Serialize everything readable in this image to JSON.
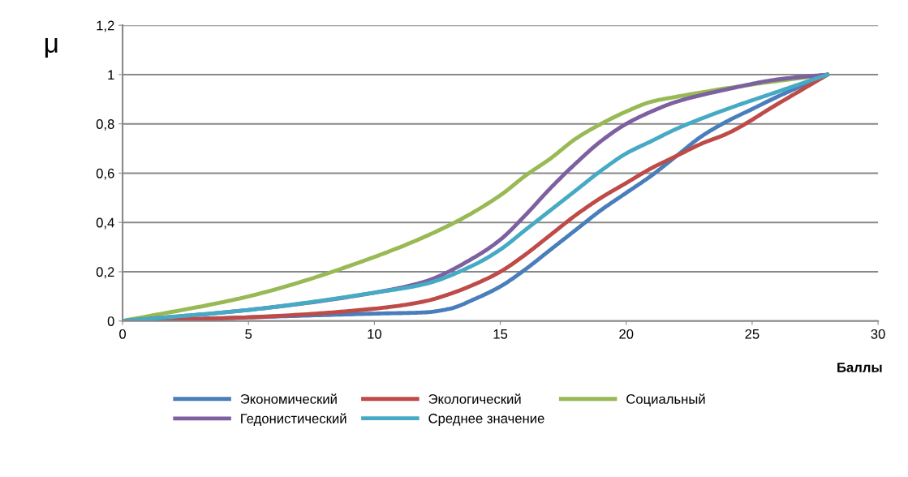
{
  "chart_data": {
    "type": "line",
    "ylabel": "μ",
    "xlabel": "Баллы",
    "xlim": [
      0,
      30
    ],
    "xticks": [
      0,
      5,
      10,
      15,
      20,
      25,
      30
    ],
    "ylim": [
      0,
      1.2
    ],
    "yticks": [
      0,
      {
        "value": 0.2,
        "label": "0,2"
      },
      {
        "value": 0.4,
        "label": "0,4"
      },
      {
        "value": 0.6,
        "label": "0,6"
      },
      {
        "value": 0.8,
        "label": "0,8"
      },
      1,
      {
        "value": 1.2,
        "label": "1,2"
      }
    ],
    "grid": "y",
    "legend": "bottom",
    "marker": "none",
    "line_style": "solid",
    "series": [
      {
        "name": "Экономический",
        "color": "#4a7ebb",
        "x": [
          0,
          5,
          10,
          12,
          13,
          14,
          15,
          16,
          17,
          18,
          19,
          20,
          21,
          22,
          23,
          24,
          25,
          26,
          28
        ],
        "values": [
          0,
          0.015,
          0.03,
          0.035,
          0.05,
          0.09,
          0.14,
          0.21,
          0.29,
          0.37,
          0.45,
          0.52,
          0.59,
          0.67,
          0.75,
          0.81,
          0.86,
          0.91,
          1
        ]
      },
      {
        "name": "Экологический",
        "color": "#be4b48",
        "x": [
          0,
          5,
          10,
          12,
          13,
          14,
          15,
          16,
          17,
          18,
          19,
          20,
          21,
          22,
          23,
          24,
          26,
          28
        ],
        "values": [
          0,
          0.015,
          0.05,
          0.08,
          0.11,
          0.15,
          0.2,
          0.27,
          0.35,
          0.43,
          0.5,
          0.56,
          0.62,
          0.67,
          0.72,
          0.76,
          0.88,
          1
        ]
      },
      {
        "name": "Социальный",
        "color": "#98b954",
        "x": [
          0,
          5,
          10,
          13,
          15,
          16,
          17,
          18,
          19,
          20,
          21,
          22,
          25,
          28
        ],
        "values": [
          0,
          0.1,
          0.26,
          0.39,
          0.51,
          0.59,
          0.66,
          0.74,
          0.8,
          0.85,
          0.89,
          0.91,
          0.96,
          1
        ]
      },
      {
        "name": "Гедонистический",
        "color": "#7d60a0",
        "x": [
          0,
          5,
          10,
          12,
          14,
          15,
          16,
          17,
          18,
          19,
          20,
          21,
          22,
          24,
          26,
          28
        ],
        "values": [
          0,
          0.045,
          0.115,
          0.16,
          0.26,
          0.33,
          0.43,
          0.54,
          0.64,
          0.73,
          0.8,
          0.85,
          0.89,
          0.94,
          0.98,
          1
        ]
      },
      {
        "name": "Среднее значение",
        "color": "#46aac5",
        "x": [
          0,
          5,
          10,
          12,
          14,
          15,
          16,
          17,
          18,
          19,
          20,
          21,
          22,
          24,
          26,
          28
        ],
        "values": [
          0,
          0.045,
          0.115,
          0.15,
          0.23,
          0.29,
          0.37,
          0.45,
          0.53,
          0.61,
          0.68,
          0.73,
          0.78,
          0.86,
          0.93,
          1
        ]
      }
    ]
  }
}
